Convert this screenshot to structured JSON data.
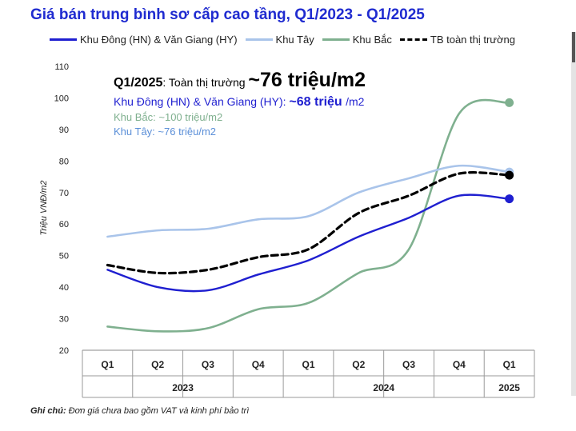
{
  "chart_data": {
    "type": "line",
    "title": "Giá bán trung bình sơ cấp cao tầng, Q1/2023 - Q1/2025",
    "ylabel": "Triệu VNĐ/m2",
    "ylim": [
      20,
      110
    ],
    "yticks": [
      20,
      30,
      40,
      50,
      60,
      70,
      80,
      90,
      100,
      110
    ],
    "categories": [
      "Q1",
      "Q2",
      "Q3",
      "Q4",
      "Q1",
      "Q2",
      "Q3",
      "Q4",
      "Q1"
    ],
    "years": [
      {
        "label": "2023",
        "start": 0,
        "end": 3
      },
      {
        "label": "2024",
        "start": 4,
        "end": 7
      },
      {
        "label": "2025",
        "start": 8,
        "end": 8
      }
    ],
    "series": [
      {
        "name": "Khu Đông (HN) & Văn Giang (HY)",
        "color": "#1f1fd0",
        "dashed": false,
        "values": [
          45.5,
          40,
          39,
          44,
          48.5,
          56,
          62,
          69,
          68
        ]
      },
      {
        "name": "Khu Tây",
        "color": "#a9c4ea",
        "dashed": false,
        "values": [
          56,
          58,
          58.5,
          61.5,
          62.5,
          70,
          74.5,
          78.5,
          76.5
        ]
      },
      {
        "name": "Khu Bắc",
        "color": "#7fb08f",
        "dashed": false,
        "values": [
          27.5,
          26,
          27,
          33,
          35,
          44.5,
          52,
          95,
          98.5
        ]
      },
      {
        "name": "TB toàn thị trường",
        "color": "#000000",
        "dashed": true,
        "values": [
          47,
          44.5,
          45.5,
          49.5,
          52,
          63.5,
          69,
          76,
          75.5
        ]
      }
    ],
    "annotations": {
      "total_label": "Q1/2025",
      "total_text": ": Toàn thị trường ",
      "total_value": "~76 triệu/m2",
      "east_label": "Khu Đông (HN) & Văn Giang (HY): ",
      "east_value": "~68 triệu ",
      "east_unit": "/m2",
      "north": "Khu Bắc: ~100 triệu/m2",
      "west": "Khu Tây: ~76 triệu/m2"
    },
    "note_label": "Ghi chú:",
    "note_text": " Đơn giá chưa bao gồm VAT và kinh phí bảo trì"
  }
}
